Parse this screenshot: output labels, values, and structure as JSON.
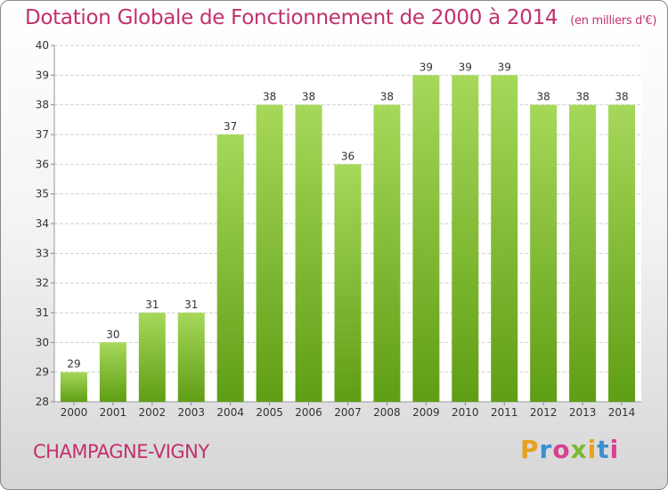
{
  "title": "Dotation Globale de Fonctionnement de 2000 à 2014",
  "unit": "(en milliers d'€)",
  "commune": "CHAMPAGNE-VIGNY",
  "logo": {
    "letters": [
      "P",
      "r",
      "o",
      "x",
      "i",
      "t",
      "i"
    ],
    "colors": [
      "#e8a020",
      "#3a8fd0",
      "#d84090",
      "#7ab830",
      "#e8a020",
      "#3a8fd0",
      "#d84090"
    ]
  },
  "colors": {
    "title": "#c2306c",
    "bar_top": "#a6d85a",
    "bar_bottom": "#5f9e14"
  },
  "chart_data": {
    "type": "bar",
    "categories": [
      "2000",
      "2001",
      "2002",
      "2003",
      "2004",
      "2005",
      "2006",
      "2007",
      "2008",
      "2009",
      "2010",
      "2011",
      "2012",
      "2013",
      "2014"
    ],
    "values": [
      29,
      30,
      31,
      31,
      37,
      38,
      38,
      36,
      38,
      39,
      39,
      39,
      38,
      38,
      38
    ],
    "value_labels": [
      "29",
      "30",
      "31",
      "31",
      "37",
      "38",
      "38",
      "36",
      "38",
      "39",
      "39",
      "39",
      "38",
      "38",
      "38"
    ],
    "yticks": [
      "28",
      "29",
      "30",
      "31",
      "32",
      "33",
      "34",
      "35",
      "36",
      "37",
      "38",
      "39",
      "40"
    ],
    "ylim": [
      28,
      40
    ],
    "grid": true
  }
}
